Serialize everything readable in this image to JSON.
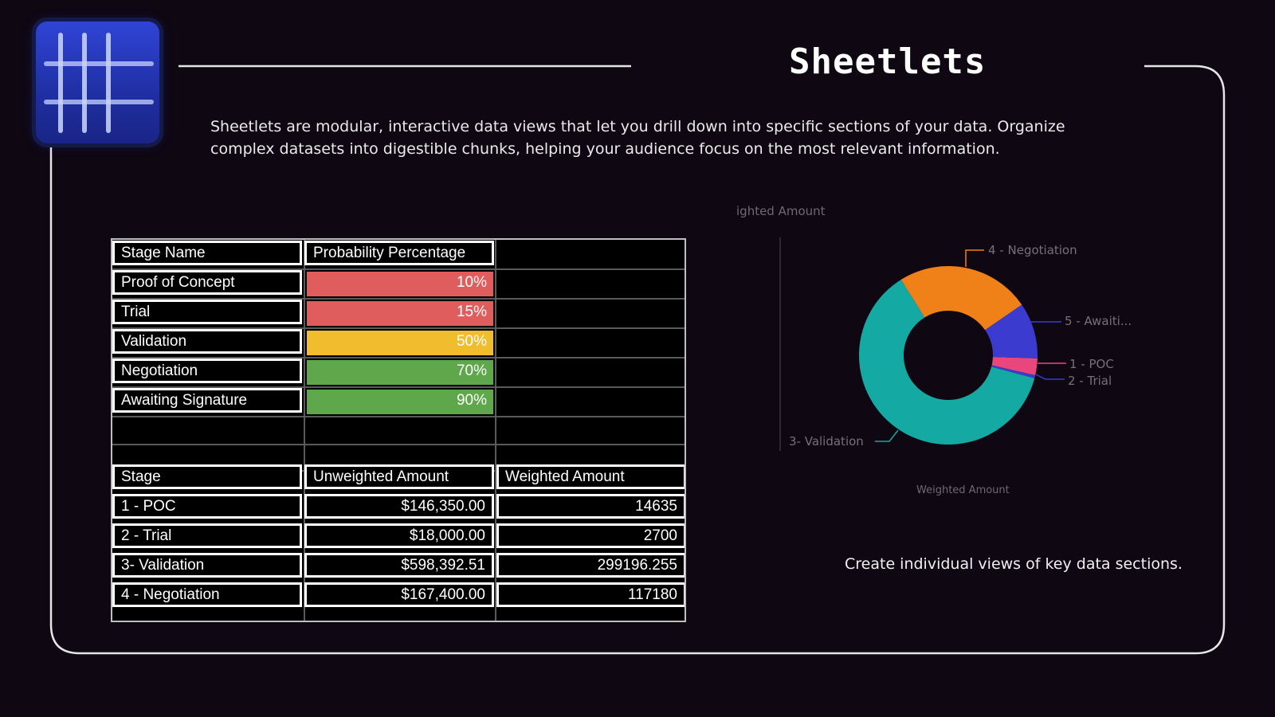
{
  "header": {
    "title": "Sheetlets",
    "description": "Sheetlets are modular, interactive data views that let you drill down into specific sections of your data. Organize complex datasets into digestible chunks, helping your audience focus on the most relevant information.",
    "logo_icon": "grid-icon"
  },
  "probability_table": {
    "headers": [
      "Stage Name",
      "Probability Percentage"
    ],
    "rows": [
      {
        "stage": "Proof of Concept",
        "pct": "10%",
        "value": 0.1,
        "color": "#e05d5d"
      },
      {
        "stage": "Trial",
        "pct": "15%",
        "value": 0.15,
        "color": "#e05d5d"
      },
      {
        "stage": "Validation",
        "pct": "50%",
        "value": 0.5,
        "color": "#f0bd2e"
      },
      {
        "stage": "Negotiation",
        "pct": "70%",
        "value": 0.7,
        "color": "#5ea84b"
      },
      {
        "stage": "Awaiting Signature",
        "pct": "90%",
        "value": 0.9,
        "color": "#5ea84b"
      }
    ]
  },
  "amount_table": {
    "headers": [
      "Stage",
      "Unweighted Amount",
      "Weighted Amount"
    ],
    "rows": [
      {
        "stage": "1 - POC",
        "unweighted": "$146,350.00",
        "weighted": "14635"
      },
      {
        "stage": "2 - Trial",
        "unweighted": "$18,000.00",
        "weighted": "2700"
      },
      {
        "stage": "3- Validation",
        "unweighted": "$598,392.51",
        "weighted": "299196.255"
      },
      {
        "stage": "4 - Negotiation",
        "unweighted": "$167,400.00",
        "weighted": "117180"
      }
    ]
  },
  "chart_data": {
    "type": "pie",
    "title": "ighted Amount",
    "subtitle": "Weighted Amount",
    "donut": true,
    "slices": [
      {
        "label": "1 - POC",
        "value": 14635,
        "color": "#e8467c"
      },
      {
        "label": "2 - Trial",
        "value": 2700,
        "color": "#3b3bcf"
      },
      {
        "label": "3- Validation",
        "value": 299196.255,
        "color": "#14a9a2"
      },
      {
        "label": "4 - Negotiation",
        "value": 117180,
        "color": "#f08018"
      },
      {
        "label": "5 - Awaiti...",
        "value": 49000,
        "color": "#3b3bcf"
      }
    ]
  },
  "tagline": "Create individual views of key data sections."
}
